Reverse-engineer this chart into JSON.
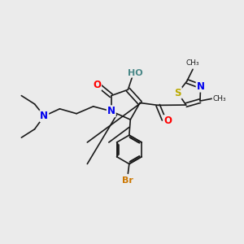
{
  "background_color": "#ebebeb",
  "bond_color": "#1a1a1a",
  "colors": {
    "N": "#0000ee",
    "O": "#ff0000",
    "S": "#bbaa00",
    "Br": "#cc7700",
    "HO": "#4a8888",
    "C": "#1a1a1a"
  },
  "lw": 1.2
}
